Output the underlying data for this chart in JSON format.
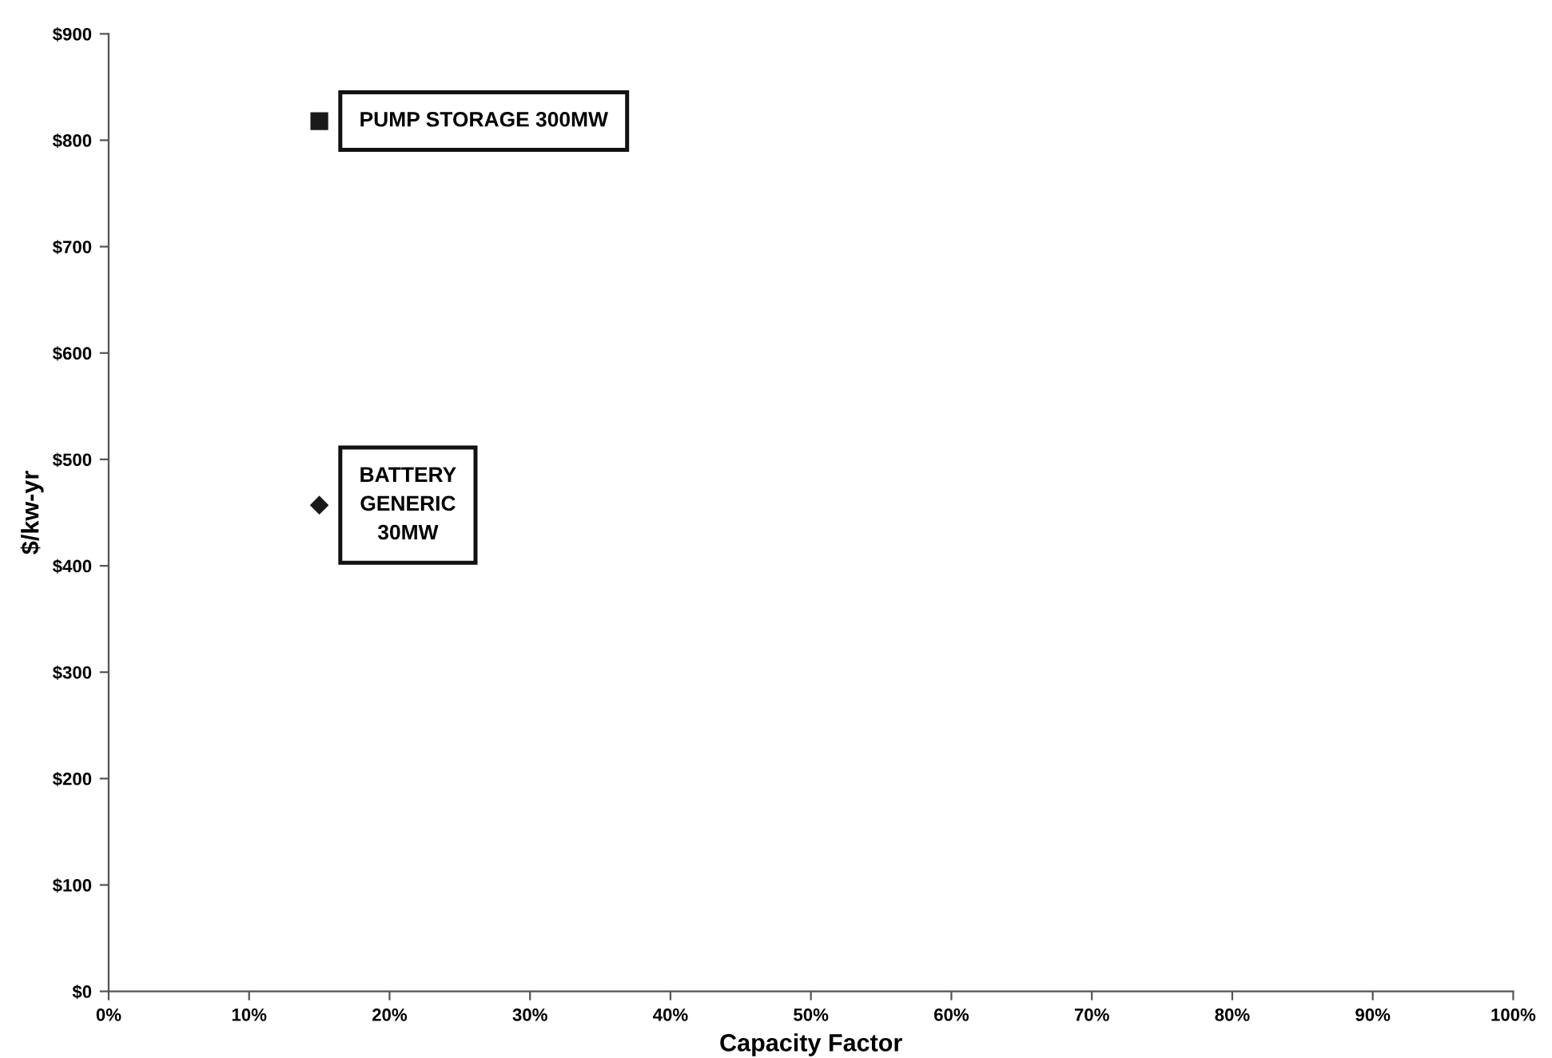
{
  "chart_data": {
    "type": "scatter",
    "xlabel": "Capacity Factor",
    "ylabel": "$/kw-yr",
    "series": [
      {
        "name": "PUMP STORAGE 300MW",
        "color": "#1a1a1a",
        "marker": "square",
        "x": [
          15
        ],
        "values": [
          818
        ]
      },
      {
        "name": "BATTERY\nGENERIC\n30MW",
        "color": "#1a1a1a",
        "marker": "diamond",
        "x": [
          15
        ],
        "values": [
          457
        ]
      }
    ],
    "xlim": [
      0,
      100
    ],
    "xticks": [
      {
        "value": 0,
        "label": "0%"
      },
      {
        "value": 10,
        "label": "10%"
      },
      {
        "value": 20,
        "label": "20%"
      },
      {
        "value": 30,
        "label": "30%"
      },
      {
        "value": 40,
        "label": "40%"
      },
      {
        "value": 50,
        "label": "50%"
      },
      {
        "value": 60,
        "label": "60%"
      },
      {
        "value": 70,
        "label": "70%"
      },
      {
        "value": 80,
        "label": "80%"
      },
      {
        "value": 90,
        "label": "90%"
      },
      {
        "value": 100,
        "label": "100%"
      }
    ],
    "ylim": [
      0,
      900
    ],
    "yticks": [
      {
        "value": 0,
        "label": "$0"
      },
      {
        "value": 100,
        "label": "$100"
      },
      {
        "value": 200,
        "label": "$200"
      },
      {
        "value": 300,
        "label": "$300"
      },
      {
        "value": 400,
        "label": "$400"
      },
      {
        "value": 500,
        "label": "$500"
      },
      {
        "value": 600,
        "label": "$600"
      },
      {
        "value": 700,
        "label": "$700"
      },
      {
        "value": 800,
        "label": "$800"
      },
      {
        "value": 900,
        "label": "$900"
      }
    ],
    "grid": false,
    "legend": false
  }
}
